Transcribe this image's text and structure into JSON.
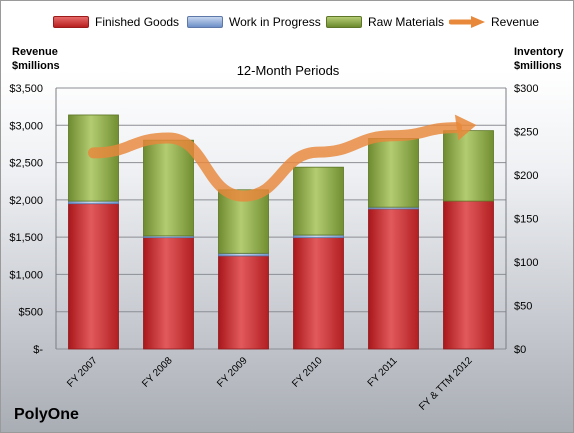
{
  "chart_data": {
    "type": "bar",
    "title": "12-Month Periods",
    "company": "PolyOne",
    "categories": [
      "FY 2007",
      "FY 2008",
      "FY 2009",
      "FY 2010",
      "FY 2011",
      "FY & TTM 2012"
    ],
    "stacked": true,
    "series": [
      {
        "name": "Finished Goods",
        "axis": "right",
        "color": "#c0282b",
        "values": [
          167,
          128,
          107,
          128,
          161,
          170
        ]
      },
      {
        "name": "Work in Progress",
        "axis": "right",
        "color": "#7f9bd0",
        "values": [
          3,
          2,
          3,
          3,
          2,
          0
        ]
      },
      {
        "name": "Raw Materials",
        "axis": "right",
        "color": "#86a33e",
        "values": [
          99,
          110,
          73,
          78,
          79,
          81
        ]
      },
      {
        "name": "Revenue",
        "axis": "left",
        "type": "line",
        "color": "#e8883a",
        "values": [
          2630,
          2830,
          2050,
          2640,
          2860,
          2990
        ]
      }
    ],
    "yleft": {
      "label_line1": "Revenue",
      "label_line2": "$millions",
      "range": [
        0,
        3500
      ],
      "ticks": [
        0,
        500,
        1000,
        1500,
        2000,
        2500,
        3000,
        3500
      ],
      "tick_labels": [
        "$-",
        "$500",
        "$1,000",
        "$1,500",
        "$2,000",
        "$2,500",
        "$3,000",
        "$3,500"
      ]
    },
    "yright": {
      "label_line1": "Inventory",
      "label_line2": "$millions",
      "range": [
        0,
        300
      ],
      "ticks": [
        0,
        50,
        100,
        150,
        200,
        250,
        300
      ],
      "tick_labels": [
        "$0",
        "$50",
        "$100",
        "$150",
        "$200",
        "$250",
        "$300"
      ]
    },
    "grid": true,
    "legend_position": "top"
  }
}
